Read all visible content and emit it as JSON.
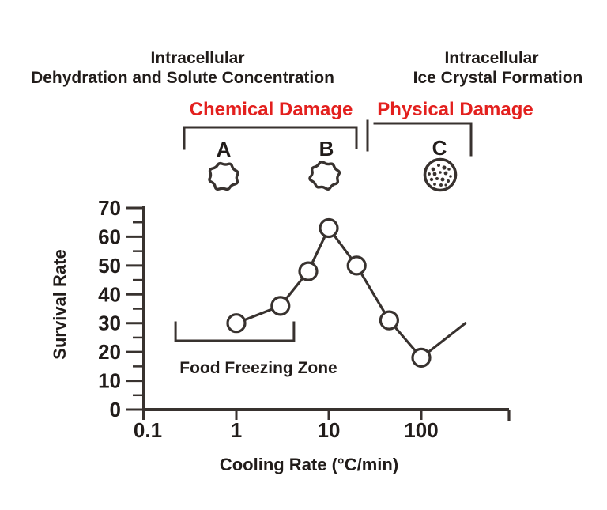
{
  "colors": {
    "ink": "#38322f",
    "text": "#211c1a",
    "accent_red": "#e3201e",
    "background": "#ffffff",
    "marker_fill": "#ffffff"
  },
  "header": {
    "left_process": {
      "line1": "Intracellular",
      "line2": "Dehydration and Solute Concentration"
    },
    "right_process": {
      "line1": "Intracellular",
      "line2": "Ice Crystal Formation"
    },
    "left_damage": "Chemical Damage",
    "right_damage": "Physical Damage"
  },
  "cells": {
    "a": {
      "label": "A",
      "kind": "shrunken-dehydrated-cell"
    },
    "b": {
      "label": "B",
      "kind": "shrunken-dehydrated-cell"
    },
    "c": {
      "label": "C",
      "kind": "cell-with-intracellular-ice-crystals"
    }
  },
  "food_zone": {
    "label": "Food Freezing Zone",
    "range_c_per_min": [
      0.22,
      4.2
    ]
  },
  "chart_data": {
    "type": "line",
    "title": "",
    "xlabel": "Cooling Rate (°C/min)",
    "ylabel": "Survival Rate",
    "x_scale": "log",
    "xlim": [
      0.1,
      900
    ],
    "ylim": [
      0,
      70
    ],
    "x_ticks": [
      "0.1",
      "1",
      "10",
      "100"
    ],
    "y_ticks": [
      0,
      10,
      20,
      30,
      40,
      50,
      60,
      70
    ],
    "y_minor_step": 5,
    "grid": false,
    "legend": "none",
    "marker": "open-circle",
    "series": [
      {
        "name": "survival-rate",
        "points_x": [
          1,
          3,
          6,
          10,
          20,
          45,
          100
        ],
        "points_y": [
          30,
          36,
          48,
          63,
          50,
          31,
          18
        ],
        "tail_segment": {
          "x": 300,
          "y": 30,
          "marker": false
        }
      }
    ]
  }
}
